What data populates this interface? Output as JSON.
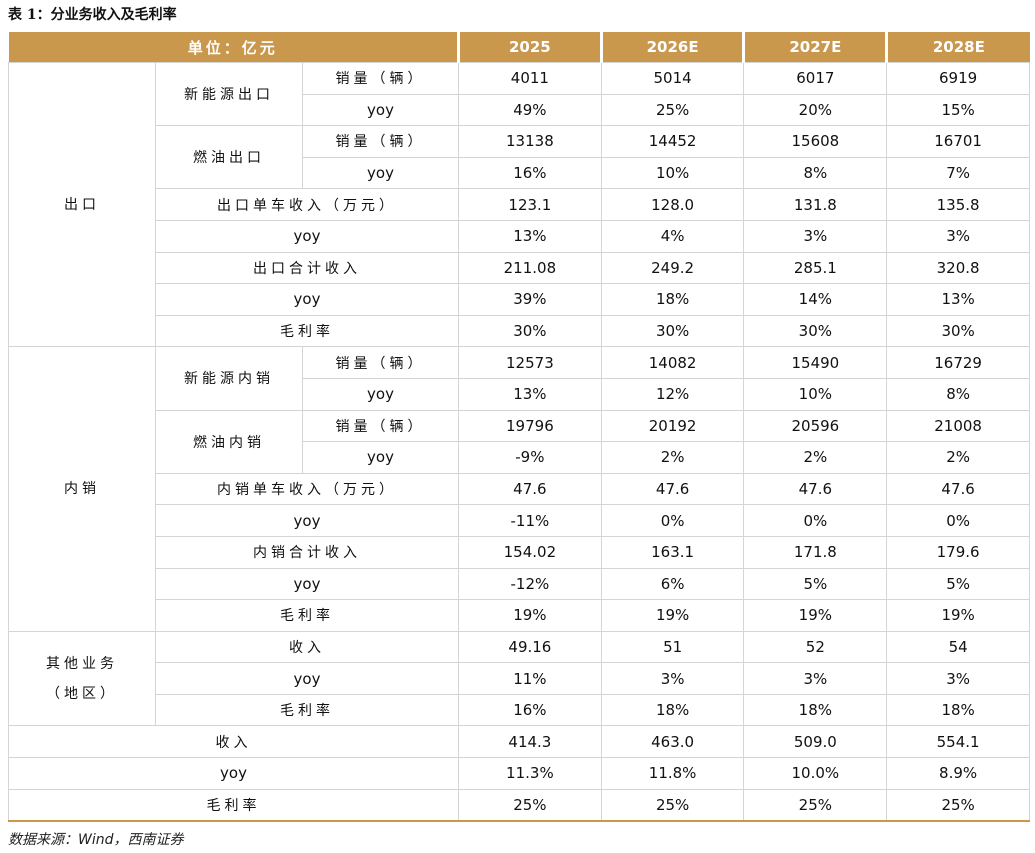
{
  "title": "表 1：分业务收入及毛利率",
  "header": {
    "unit": "单位：亿元",
    "years": [
      "2025",
      "2026E",
      "2027E",
      "2028E"
    ]
  },
  "sections": [
    {
      "label": "出口",
      "items": [
        {
          "label": "新能源出口",
          "rows": [
            {
              "label": "销量（辆）",
              "values": [
                "4011",
                "5014",
                "6017",
                "6919"
              ]
            },
            {
              "label": "yoy",
              "values": [
                "49%",
                "25%",
                "20%",
                "15%"
              ]
            }
          ]
        },
        {
          "label": "燃油出口",
          "rows": [
            {
              "label": "销量（辆）",
              "values": [
                "13138",
                "14452",
                "15608",
                "16701"
              ]
            },
            {
              "label": "yoy",
              "values": [
                "16%",
                "10%",
                "8%",
                "7%"
              ]
            }
          ]
        },
        {
          "label": "出口单车收入（万元）",
          "values": [
            "123.1",
            "128.0",
            "131.8",
            "135.8"
          ]
        },
        {
          "label": "yoy",
          "values": [
            "13%",
            "4%",
            "3%",
            "3%"
          ]
        },
        {
          "label": "出口合计收入",
          "values": [
            "211.08",
            "249.2",
            "285.1",
            "320.8"
          ]
        },
        {
          "label": "yoy",
          "values": [
            "39%",
            "18%",
            "14%",
            "13%"
          ]
        },
        {
          "label": "毛利率",
          "values": [
            "30%",
            "30%",
            "30%",
            "30%"
          ]
        }
      ]
    },
    {
      "label": "内销",
      "items": [
        {
          "label": "新能源内销",
          "rows": [
            {
              "label": "销量（辆）",
              "values": [
                "12573",
                "14082",
                "15490",
                "16729"
              ]
            },
            {
              "label": "yoy",
              "values": [
                "13%",
                "12%",
                "10%",
                "8%"
              ]
            }
          ]
        },
        {
          "label": "燃油内销",
          "rows": [
            {
              "label": "销量（辆）",
              "values": [
                "19796",
                "20192",
                "20596",
                "21008"
              ]
            },
            {
              "label": "yoy",
              "values": [
                "-9%",
                "2%",
                "2%",
                "2%"
              ]
            }
          ]
        },
        {
          "label": "内销单车收入（万元）",
          "values": [
            "47.6",
            "47.6",
            "47.6",
            "47.6"
          ]
        },
        {
          "label": "yoy",
          "values": [
            "-11%",
            "0%",
            "0%",
            "0%"
          ]
        },
        {
          "label": "内销合计收入",
          "values": [
            "154.02",
            "163.1",
            "171.8",
            "179.6"
          ]
        },
        {
          "label": "yoy",
          "values": [
            "-12%",
            "6%",
            "5%",
            "5%"
          ]
        },
        {
          "label": "毛利率",
          "values": [
            "19%",
            "19%",
            "19%",
            "19%"
          ]
        }
      ]
    },
    {
      "label": "其他业务（地区）",
      "items": [
        {
          "label": "收入",
          "values": [
            "49.16",
            "51",
            "52",
            "54"
          ]
        },
        {
          "label": "yoy",
          "values": [
            "11%",
            "3%",
            "3%",
            "3%"
          ]
        },
        {
          "label": "毛利率",
          "values": [
            "16%",
            "18%",
            "18%",
            "18%"
          ]
        }
      ]
    }
  ],
  "totals": [
    {
      "label": "收入",
      "values": [
        "414.3",
        "463.0",
        "509.0",
        "554.1"
      ]
    },
    {
      "label": "yoy",
      "values": [
        "11.3%",
        "11.8%",
        "10.0%",
        "8.9%"
      ]
    },
    {
      "label": "毛利率",
      "values": [
        "25%",
        "25%",
        "25%",
        "25%"
      ]
    }
  ],
  "source": "数据来源：Wind，西南证券"
}
